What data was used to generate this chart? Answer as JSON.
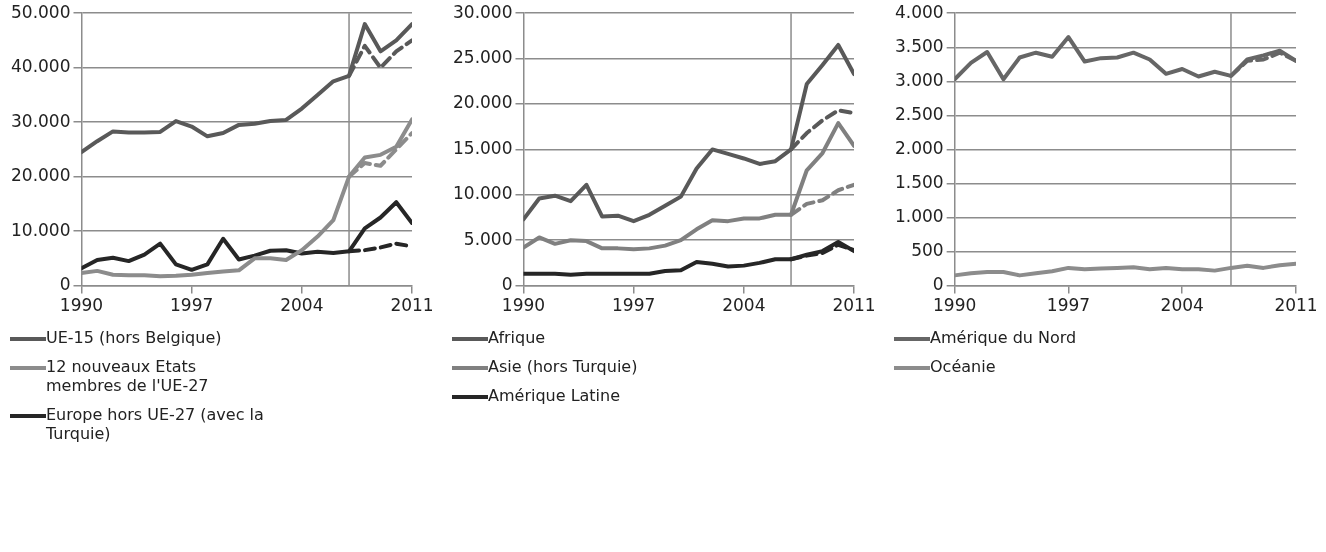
{
  "chart_data": [
    {
      "type": "line",
      "xlim": [
        1990,
        2011
      ],
      "xticks": [
        1990,
        1997,
        2004,
        2011
      ],
      "ylim": [
        0,
        50000
      ],
      "yticks": [
        {
          "value": 0,
          "label": "0"
        },
        {
          "value": 10000,
          "label": "10.000"
        },
        {
          "value": 20000,
          "label": "20.000"
        },
        {
          "value": 30000,
          "label": "30.000"
        },
        {
          "value": 40000,
          "label": "40.000"
        },
        {
          "value": 50000,
          "label": "50.000"
        }
      ],
      "grid": "y",
      "legend": "bottom",
      "marker": "none",
      "ref_lines": [
        {
          "axis": "x",
          "value": 2007,
          "color": "#8c8c8c"
        }
      ],
      "x": [
        1990,
        1991,
        1992,
        1993,
        1994,
        1995,
        1996,
        1997,
        1998,
        1999,
        2000,
        2001,
        2002,
        2003,
        2004,
        2005,
        2006,
        2007,
        2008,
        2009,
        2010,
        2011
      ],
      "series": [
        {
          "name": "UE-15  (hors Belgique)",
          "color": "#595959",
          "values": [
            24500,
            26500,
            28300,
            28100,
            28100,
            28200,
            30200,
            29200,
            27400,
            28000,
            29500,
            29700,
            30200,
            30400,
            32500,
            35000,
            37500,
            38500,
            48000,
            43000,
            45000,
            48000
          ]
        },
        {
          "name": "12 nouveaux Etats membres de l'UE-27",
          "color": "#8c8c8c",
          "values": [
            2300,
            2700,
            2000,
            1900,
            1900,
            1700,
            1800,
            2000,
            2300,
            2600,
            2800,
            5000,
            5000,
            4700,
            6500,
            9000,
            12000,
            20000,
            23500,
            24000,
            25500,
            30500
          ]
        },
        {
          "name": "Europe hors UE-27 (avec la Turquie)",
          "color": "#262626",
          "values": [
            3200,
            4700,
            5100,
            4500,
            5700,
            7700,
            3900,
            2900,
            3900,
            8600,
            4800,
            5500,
            6400,
            6500,
            5900,
            6200,
            6000,
            6300,
            10500,
            12500,
            15300,
            11500
          ]
        },
        {
          "color": "#595959",
          "line_style": "dashed",
          "x": [
            2007,
            2008,
            2009,
            2010,
            2011
          ],
          "values": [
            38500,
            44000,
            40000,
            43000,
            45000
          ]
        },
        {
          "color": "#8c8c8c",
          "line_style": "dashed",
          "x": [
            2007,
            2008,
            2009,
            2010,
            2011
          ],
          "values": [
            20000,
            22500,
            22000,
            25000,
            28000
          ]
        },
        {
          "color": "#262626",
          "line_style": "dashed",
          "x": [
            2007,
            2008,
            2009,
            2010,
            2011
          ],
          "values": [
            6300,
            6500,
            7000,
            7700,
            7200
          ]
        }
      ]
    },
    {
      "type": "line",
      "xlim": [
        1990,
        2011
      ],
      "xticks": [
        1990,
        1997,
        2004,
        2011
      ],
      "ylim": [
        0,
        30000
      ],
      "yticks": [
        {
          "value": 0,
          "label": "0"
        },
        {
          "value": 5000,
          "label": "5.000"
        },
        {
          "value": 10000,
          "label": "10.000"
        },
        {
          "value": 15000,
          "label": "15.000"
        },
        {
          "value": 20000,
          "label": "20.000"
        },
        {
          "value": 25000,
          "label": "25.000"
        },
        {
          "value": 30000,
          "label": "30.000"
        }
      ],
      "grid": "y",
      "legend": "bottom",
      "marker": "none",
      "ref_lines": [
        {
          "axis": "x",
          "value": 2007,
          "color": "#8c8c8c"
        }
      ],
      "x": [
        1990,
        1991,
        1992,
        1993,
        1994,
        1995,
        1996,
        1997,
        1998,
        1999,
        2000,
        2001,
        2002,
        2003,
        2004,
        2005,
        2006,
        2007,
        2008,
        2009,
        2010,
        2011
      ],
      "series": [
        {
          "name": "Afrique",
          "color": "#595959",
          "values": [
            7300,
            9600,
            9900,
            9300,
            11100,
            7600,
            7700,
            7100,
            7800,
            8800,
            9800,
            12900,
            15000,
            14500,
            14000,
            13400,
            13700,
            15000,
            22200,
            24300,
            26500,
            23300
          ]
        },
        {
          "name": "Asie (hors Turquie)",
          "color": "#808080",
          "values": [
            4200,
            5300,
            4600,
            5000,
            4900,
            4100,
            4100,
            4000,
            4100,
            4400,
            5000,
            6200,
            7200,
            7100,
            7400,
            7400,
            7800,
            7800,
            12700,
            14600,
            17900,
            15400
          ]
        },
        {
          "name": "Amérique Latine",
          "color": "#262626",
          "values": [
            1300,
            1300,
            1300,
            1200,
            1300,
            1300,
            1300,
            1300,
            1300,
            1600,
            1700,
            2600,
            2400,
            2100,
            2200,
            2500,
            2900,
            2900,
            3400,
            3800,
            4800,
            3800
          ]
        },
        {
          "color": "#595959",
          "line_style": "dashed",
          "x": [
            2007,
            2008,
            2009,
            2010,
            2011
          ],
          "values": [
            15000,
            16800,
            18200,
            19300,
            19000
          ]
        },
        {
          "color": "#808080",
          "line_style": "dashed",
          "x": [
            2007,
            2008,
            2009,
            2010,
            2011
          ],
          "values": [
            7800,
            9000,
            9400,
            10500,
            11100
          ]
        },
        {
          "color": "#262626",
          "line_style": "dashed",
          "x": [
            2007,
            2008,
            2009,
            2010,
            2011
          ],
          "values": [
            2900,
            3300,
            3600,
            4500,
            3900
          ]
        }
      ]
    },
    {
      "type": "line",
      "xlim": [
        1990,
        2011
      ],
      "xticks": [
        1990,
        1997,
        2004,
        2011
      ],
      "ylim": [
        0,
        4000
      ],
      "yticks": [
        {
          "value": 0,
          "label": "0"
        },
        {
          "value": 500,
          "label": "500"
        },
        {
          "value": 1000,
          "label": "1.000"
        },
        {
          "value": 1500,
          "label": "1.500"
        },
        {
          "value": 2000,
          "label": "2.000"
        },
        {
          "value": 2500,
          "label": "2.500"
        },
        {
          "value": 3000,
          "label": "3.000"
        },
        {
          "value": 3500,
          "label": "3.500"
        },
        {
          "value": 4000,
          "label": "4.000"
        }
      ],
      "grid": "y",
      "legend": "bottom",
      "marker": "none",
      "ref_lines": [
        {
          "axis": "x",
          "value": 2007,
          "color": "#8c8c8c"
        }
      ],
      "x": [
        1990,
        1991,
        1992,
        1993,
        1994,
        1995,
        1996,
        1997,
        1998,
        1999,
        2000,
        2001,
        2002,
        2003,
        2004,
        2005,
        2006,
        2007,
        2008,
        2009,
        2010,
        2011
      ],
      "series": [
        {
          "name": "Amérique du Nord",
          "color": "#666666",
          "values": [
            3030,
            3270,
            3430,
            3030,
            3350,
            3420,
            3360,
            3650,
            3290,
            3340,
            3350,
            3420,
            3320,
            3110,
            3180,
            3070,
            3140,
            3080,
            3320,
            3380,
            3450,
            3300
          ]
        },
        {
          "name": "Océanie",
          "color": "#8c8c8c",
          "values": [
            150,
            180,
            200,
            200,
            150,
            180,
            210,
            260,
            240,
            250,
            260,
            270,
            240,
            260,
            240,
            240,
            220,
            260,
            290,
            260,
            300,
            320
          ]
        },
        {
          "color": "#666666",
          "line_style": "dashed",
          "x": [
            2007,
            2008,
            2009,
            2010,
            2011
          ],
          "values": [
            3080,
            3300,
            3320,
            3420,
            3300
          ]
        }
      ]
    }
  ]
}
